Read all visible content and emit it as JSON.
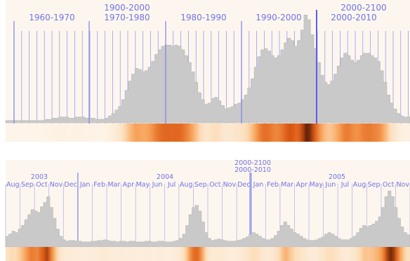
{
  "chart_data": [
    {
      "type": "area",
      "title": "",
      "xlabel": "",
      "ylabel": "",
      "grid": true,
      "legend": "none",
      "ticks_top": [
        "1900-2000"
      ],
      "ticks": [
        "1960-1970",
        "1970-1980",
        "1980-1990",
        "1990-2000",
        "2000-2010"
      ],
      "ticks_top_right": "2000-2100",
      "values": [
        2,
        2,
        2,
        2,
        2,
        2,
        2,
        2,
        2,
        2,
        2,
        2,
        3,
        3,
        4,
        4,
        5,
        5,
        5,
        4,
        4,
        5,
        5,
        5,
        4,
        4,
        4,
        3,
        3,
        3,
        4,
        6,
        8,
        11,
        14,
        20,
        28,
        36,
        42,
        47,
        46,
        44,
        45,
        48,
        53,
        59,
        63,
        66,
        67,
        67,
        66,
        67,
        66,
        63,
        58,
        52,
        44,
        35,
        26,
        20,
        16,
        17,
        21,
        22,
        19,
        15,
        12,
        13,
        14,
        16,
        17,
        20,
        24,
        30,
        38,
        48,
        57,
        63,
        64,
        62,
        58,
        56,
        58,
        63,
        69,
        73,
        71,
        66,
        71,
        80,
        93,
        89,
        76,
        64,
        52,
        41,
        35,
        33,
        36,
        42,
        49,
        56,
        60,
        58,
        54,
        52,
        54,
        58,
        60,
        60,
        58,
        56,
        53,
        45,
        35,
        24,
        17,
        12,
        8,
        6,
        5,
        5
      ]
    },
    {
      "type": "area",
      "title": "",
      "xlabel": "",
      "ylabel": "",
      "grid": true,
      "legend": "none",
      "center_labels": [
        "2000-2100",
        "2000-2010"
      ],
      "year_labels": [
        "2003",
        "2004",
        "2005"
      ],
      "month_labels": [
        "Aug",
        "Sep",
        "Oct",
        "Nov",
        "Dec",
        "Jan",
        "Feb",
        "Mar",
        "Apr",
        "May",
        "Jun",
        "Jul",
        "Aug",
        "Sep",
        "Oct",
        "Nov",
        "Dec",
        "Jan",
        "Feb",
        "Mar",
        "Apr",
        "May",
        "Jun",
        "Jul",
        "Aug",
        "Sep",
        "Oct",
        "Nov"
      ],
      "values": [
        15,
        18,
        22,
        20,
        25,
        30,
        38,
        45,
        52,
        50,
        48,
        56,
        62,
        70,
        55,
        40,
        25,
        15,
        10,
        8,
        9,
        9,
        8,
        8,
        7,
        7,
        7,
        8,
        8,
        9,
        9,
        10,
        9,
        8,
        8,
        7,
        8,
        8,
        7,
        8,
        8,
        7,
        7,
        7,
        8,
        8,
        7,
        7,
        8,
        8,
        7,
        7,
        7,
        8,
        9,
        12,
        18,
        30,
        45,
        55,
        58,
        50,
        35,
        20,
        12,
        9,
        10,
        11,
        10,
        9,
        8,
        8,
        8,
        9,
        10,
        12,
        14,
        18,
        20,
        18,
        15,
        12,
        10,
        10,
        12,
        16,
        22,
        30,
        35,
        30,
        25,
        20,
        18,
        15,
        12,
        10,
        9,
        9,
        10,
        12,
        14,
        18,
        20,
        18,
        15,
        12,
        10,
        10,
        10,
        12,
        15,
        20,
        26,
        30,
        28,
        30,
        32,
        36,
        42,
        55,
        70,
        78,
        70,
        55,
        40,
        28,
        20,
        17
      ]
    }
  ]
}
